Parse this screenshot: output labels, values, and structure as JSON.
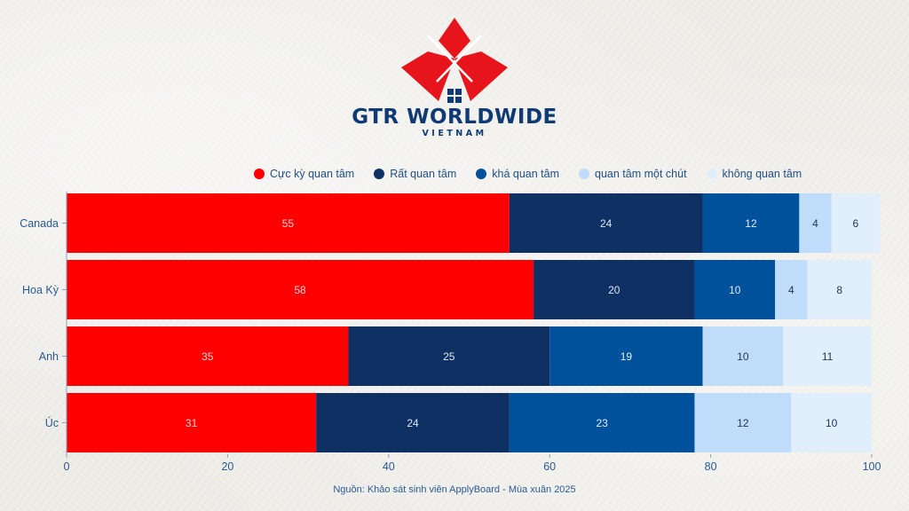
{
  "brand": {
    "name": "GTR WORLDWIDE",
    "sub": "VIETNAM"
  },
  "colors": {
    "logo_red": "#e8141b",
    "logo_navy": "#0f3a73",
    "axis_text": "#2a5a94"
  },
  "source_note": "Nguồn: Khảo sát sinh viên ApplyBoard - Mùa xuân 2025",
  "chart_data": {
    "type": "bar",
    "orientation": "horizontal",
    "stacked": true,
    "title": "",
    "xlabel": "",
    "ylabel": "",
    "xlim": [
      0,
      100
    ],
    "x_ticks": [
      0,
      20,
      40,
      60,
      80,
      100
    ],
    "categories": [
      "Canada",
      "Hoa Kỳ",
      "Anh",
      "Úc"
    ],
    "legend_position": "top",
    "grid": false,
    "series": [
      {
        "name": "Cực kỳ quan tâm",
        "color": "#fe0000",
        "label_color": "#ffd4d4",
        "values": [
          55,
          58,
          35,
          31
        ]
      },
      {
        "name": "Rất quan tâm",
        "color": "#0e3062",
        "label_color": "#dfe7f2",
        "values": [
          24,
          20,
          25,
          24
        ]
      },
      {
        "name": "khá quan tâm",
        "color": "#00519c",
        "label_color": "#e3eefa",
        "values": [
          12,
          10,
          19,
          23
        ]
      },
      {
        "name": "quan tâm một chút",
        "color": "#bfdcfa",
        "label_color": "#1d3557",
        "values": [
          4,
          4,
          10,
          12
        ]
      },
      {
        "name": "không quan tâm",
        "color": "#e1effc",
        "label_color": "#1d3557",
        "values": [
          6,
          8,
          11,
          10
        ]
      }
    ]
  }
}
